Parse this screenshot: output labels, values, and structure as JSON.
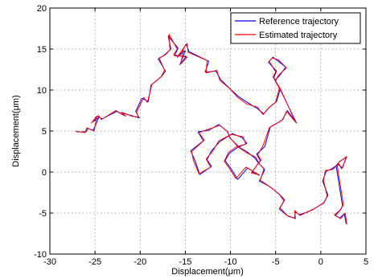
{
  "chart_data": {
    "type": "line",
    "title": "",
    "xlabel": "Displacement(μm)",
    "ylabel": "Displacement(μm)",
    "xlim": [
      -30,
      5
    ],
    "ylim": [
      -10,
      20
    ],
    "xticks": [
      -30,
      -25,
      -20,
      -15,
      -10,
      -5,
      0,
      5
    ],
    "yticks": [
      -10,
      -5,
      0,
      5,
      10,
      15,
      20
    ],
    "grid": true,
    "legend_position": "top-right",
    "series": [
      {
        "name": "Reference trajectory",
        "color": "#0000ff",
        "x": [
          -27.0,
          -26.0,
          -25.8,
          -25.2,
          -24.6,
          -25.3,
          -24.8,
          -24.2,
          -22.6,
          -21.8,
          -22.0,
          -21.0,
          -20.1,
          -20.5,
          -19.8,
          -19.1,
          -18.8,
          -17.6,
          -17.2,
          -18.0,
          -17.4,
          -16.6,
          -16.9,
          -15.8,
          -16.2,
          -14.9,
          -15.6,
          -15.0,
          -15.8,
          -14.9,
          -14.6,
          -12.4,
          -12.8,
          -11.6,
          -11.1,
          -10.0,
          -9.1,
          -8.0,
          -7.1,
          -6.3,
          -5.8,
          -4.9,
          -4.5,
          -5.1,
          -4.6,
          -3.9,
          -4.8,
          -5.3,
          -5.8,
          -4.9,
          -5.2,
          -4.6,
          -2.7,
          -3.7,
          -4.3,
          -5.6,
          -6.2,
          -7.1,
          -6.7,
          -7.6,
          -6.8,
          -8.1,
          -9.2,
          -10.0,
          -10.6,
          -10.1,
          -9.2,
          -8.2,
          -8.7,
          -9.8,
          -11.2,
          -12.1,
          -12.6,
          -12.1,
          -13.4,
          -13.9,
          -14.4,
          -13.0,
          -13.6,
          -12.4,
          -11.3,
          -10.3,
          -10.1,
          -9.0,
          -8.2,
          -7.3,
          -6.9,
          -6.2,
          -6.8,
          -5.6,
          -4.5,
          -4.0,
          -4.6,
          -3.6,
          -2.9,
          -2.8,
          -2.4,
          -1.5,
          -0.8,
          0.3,
          0.8,
          0.2,
          0.6,
          1.2,
          1.9,
          2.4,
          2.8,
          2.1,
          1.7,
          2.4,
          2.2,
          1.6,
          2.1,
          2.6,
          2.8
        ],
        "y": [
          4.9,
          4.9,
          5.3,
          5.1,
          6.6,
          6.1,
          6.8,
          6.5,
          7.4,
          6.9,
          7.2,
          6.9,
          6.6,
          7.4,
          9.0,
          8.6,
          10.6,
          11.7,
          12.3,
          13.8,
          14.2,
          15.0,
          16.6,
          15.1,
          14.2,
          14.1,
          13.1,
          14.8,
          14.1,
          15.6,
          14.7,
          13.5,
          12.2,
          12.3,
          11.3,
          10.1,
          9.2,
          8.4,
          7.8,
          7.1,
          7.8,
          8.6,
          10.1,
          11.2,
          11.7,
          12.8,
          13.6,
          14.0,
          13.4,
          12.3,
          11.5,
          10.3,
          6.0,
          7.5,
          6.3,
          5.5,
          3.1,
          2.2,
          1.4,
          0.0,
          -0.4,
          0.5,
          -0.9,
          0.5,
          1.4,
          2.3,
          3.0,
          3.5,
          4.2,
          4.7,
          3.7,
          2.6,
          1.5,
          0.7,
          -0.3,
          1.3,
          2.6,
          3.8,
          4.9,
          5.1,
          5.8,
          4.9,
          4.2,
          3.0,
          2.5,
          1.7,
          1.1,
          0.3,
          -1.1,
          -1.8,
          -2.8,
          -3.4,
          -4.5,
          -5.4,
          -5.6,
          -4.8,
          -5.2,
          -4.9,
          -4.5,
          -3.8,
          -2.8,
          -1.1,
          0.1,
          0.4,
          0.9,
          0.5,
          1.8,
          1.3,
          0.8,
          -4.1,
          -4.6,
          -5.3,
          -5.6,
          -5.1,
          -6.3
        ]
      },
      {
        "name": "Estimated trajectory",
        "color": "#ff0000",
        "x": [
          -27.2,
          -26.1,
          -25.9,
          -25.1,
          -24.8,
          -25.4,
          -24.6,
          -24.3,
          -22.7,
          -21.6,
          -22.1,
          -20.9,
          -20.2,
          -20.4,
          -19.6,
          -19.2,
          -18.7,
          -17.7,
          -17.3,
          -17.9,
          -17.2,
          -16.7,
          -16.8,
          -15.9,
          -16.3,
          -14.8,
          -15.5,
          -15.2,
          -15.9,
          -14.8,
          -14.7,
          -12.6,
          -12.7,
          -11.5,
          -11.2,
          -10.1,
          -9.2,
          -8.2,
          -7.0,
          -6.4,
          -5.7,
          -5.0,
          -4.6,
          -5.0,
          -4.7,
          -3.8,
          -4.7,
          -5.4,
          -5.7,
          -5.0,
          -5.3,
          -4.5,
          -2.8,
          -3.8,
          -4.2,
          -5.7,
          -6.4,
          -7.0,
          -6.6,
          -7.7,
          -6.9,
          -8.3,
          -9.4,
          -10.2,
          -10.7,
          -10.2,
          -9.3,
          -8.3,
          -8.6,
          -9.9,
          -11.3,
          -12.0,
          -12.7,
          -12.2,
          -13.5,
          -14.1,
          -14.3,
          -12.9,
          -13.5,
          -12.5,
          -11.2,
          -10.4,
          -10.0,
          -9.2,
          -8.3,
          -7.2,
          -6.8,
          -6.3,
          -6.7,
          -5.5,
          -4.6,
          -4.1,
          -4.5,
          -3.7,
          -2.8,
          -2.9,
          -2.3,
          -1.4,
          -0.9,
          0.4,
          0.7,
          0.3,
          0.5,
          1.3,
          2.0,
          2.3,
          2.9,
          2.0,
          1.8,
          2.5,
          2.1,
          1.5,
          2.2,
          2.7,
          2.9
        ],
        "y": [
          5.0,
          4.8,
          5.4,
          5.0,
          6.8,
          6.0,
          6.9,
          6.4,
          7.5,
          6.8,
          7.3,
          6.8,
          6.7,
          7.3,
          9.1,
          8.5,
          10.7,
          11.6,
          12.4,
          13.9,
          14.3,
          14.9,
          16.8,
          15.0,
          14.3,
          14.0,
          13.2,
          14.9,
          14.0,
          15.7,
          14.6,
          13.6,
          12.1,
          12.4,
          11.2,
          10.2,
          9.1,
          8.3,
          7.9,
          7.0,
          7.9,
          8.5,
          10.2,
          11.1,
          11.8,
          12.7,
          13.7,
          13.9,
          13.5,
          12.2,
          11.6,
          10.2,
          6.1,
          7.4,
          6.4,
          5.4,
          3.2,
          2.1,
          1.5,
          -0.1,
          -0.3,
          0.6,
          -0.8,
          0.6,
          1.3,
          2.4,
          3.1,
          3.4,
          4.3,
          4.6,
          3.8,
          2.5,
          1.6,
          0.6,
          -0.2,
          1.4,
          2.5,
          3.9,
          4.8,
          5.2,
          5.7,
          5.0,
          4.1,
          3.1,
          2.4,
          1.8,
          1.0,
          0.4,
          -1.0,
          -1.9,
          -2.7,
          -3.5,
          -4.4,
          -5.3,
          -5.7,
          -4.7,
          -5.3,
          -4.8,
          -4.6,
          -3.7,
          -2.9,
          -1.0,
          0.2,
          0.3,
          1.0,
          0.4,
          1.9,
          1.2,
          0.9,
          -4.0,
          -4.7,
          -5.2,
          -5.7,
          -5.0,
          -6.4
        ]
      }
    ]
  }
}
